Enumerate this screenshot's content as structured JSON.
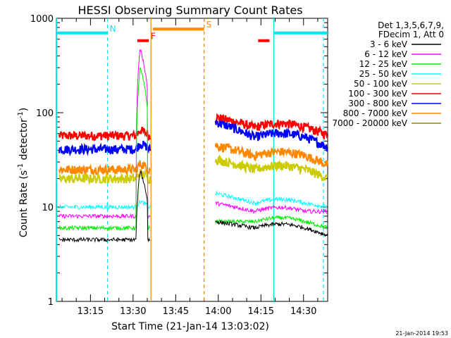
{
  "chart_data": {
    "type": "line",
    "title": "HESSI Observing Summary Count Rates",
    "xlabel": "Start Time (21-Jan-14 13:03:02)",
    "ylabel_base": "Count Rate (s",
    "ylabel_sup1": "-1",
    "ylabel_mid": " detector",
    "ylabel_sup2": "-1",
    "ylabel_end": ")",
    "y_scale": "log",
    "ylim": [
      1,
      1000
    ],
    "xlim_minutes": [
      3.0,
      98.5
    ],
    "x_ticks": [
      {
        "label": "13:15",
        "min": 15
      },
      {
        "label": "13:30",
        "min": 30
      },
      {
        "label": "13:45",
        "min": 45
      },
      {
        "label": "14:00",
        "min": 60
      },
      {
        "label": "14:15",
        "min": 75
      },
      {
        "label": "14:30",
        "min": 90
      }
    ],
    "y_ticks": [
      {
        "label": "1",
        "value": 1
      },
      {
        "label": "10",
        "value": 10
      },
      {
        "label": "100",
        "value": 100
      },
      {
        "label": "1000",
        "value": 1000
      }
    ],
    "legend": {
      "placement": "right",
      "header": [
        "Det 1,3,5,6,7,9,",
        "FDecim 1, Att 0"
      ]
    },
    "series": [
      {
        "name": "3 - 6 keV",
        "color": "#000000"
      },
      {
        "name": "6 - 12 keV",
        "color": "#ff00ff"
      },
      {
        "name": "12 - 25 keV",
        "color": "#00ee00"
      },
      {
        "name": "25 - 50 keV",
        "color": "#00ffff"
      },
      {
        "name": "50 - 100 keV",
        "color": "#cccc00"
      },
      {
        "name": "100 - 300 keV",
        "color": "#ff0000"
      },
      {
        "name": "300 - 800 keV",
        "color": "#0000ff"
      },
      {
        "name": "800 - 7000 keV",
        "color": "#ff8800"
      },
      {
        "name": "7000 - 20000 keV",
        "color": "#888800"
      }
    ],
    "flag_bars": [
      {
        "label": "N",
        "color": "#00e5ee",
        "start": 3.0,
        "end": 21.0,
        "y": 700
      },
      {
        "label": "F",
        "color": "#ff0000",
        "start": 31.5,
        "end": 35.5,
        "y": 580
      },
      {
        "label": "S",
        "color": "#ff8800",
        "start": 37.0,
        "end": 55.0,
        "y": 770
      },
      {
        "label": "",
        "color": "#ff0000",
        "start": 74.0,
        "end": 78.0,
        "y": 580
      },
      {
        "label": "",
        "color": "#00e5ee",
        "start": 79.5,
        "end": 98.5,
        "y": 700
      }
    ],
    "vlines": [
      {
        "min": 3.1,
        "color": "#00e5ee",
        "style": "solid"
      },
      {
        "min": 21.0,
        "color": "#00e5ee",
        "style": "dashed"
      },
      {
        "min": 36.3,
        "color": "#ff8800",
        "style": "solid"
      },
      {
        "min": 55.0,
        "color": "#ff8800",
        "style": "dashed"
      },
      {
        "min": 79.5,
        "color": "#00e5ee",
        "style": "solid"
      },
      {
        "min": 97.0,
        "color": "#00e5ee",
        "style": "dashed"
      }
    ],
    "data_segments": [
      {
        "start": 4.0,
        "end": 36.0
      },
      {
        "start": 59.0,
        "end": 98.5
      }
    ],
    "levels": {
      "keys": [
        "100 - 300 keV",
        "300 - 800 keV",
        "800 - 7000 keV",
        "50 - 100 keV",
        "25 - 50 keV",
        "6 - 12 keV",
        "12 - 25 keV",
        "3 - 6 keV"
      ],
      "segment1": [
        57,
        41,
        25,
        20,
        10,
        8,
        6,
        4.5
      ],
      "segment2_start": [
        90,
        80,
        45,
        32,
        14,
        11,
        7,
        7
      ],
      "segment2_mid": [
        70,
        55,
        35,
        25,
        11,
        9,
        7,
        6
      ],
      "segment2_end": [
        58,
        43,
        28,
        20,
        10,
        9,
        6,
        5
      ]
    },
    "flare": {
      "start": 31.0,
      "peak": 32.5,
      "end": 35.0,
      "peak_6_12": 480,
      "peak_12_25": 300
    }
  },
  "footer_timestamp": "21-Jan-2014 19:53"
}
